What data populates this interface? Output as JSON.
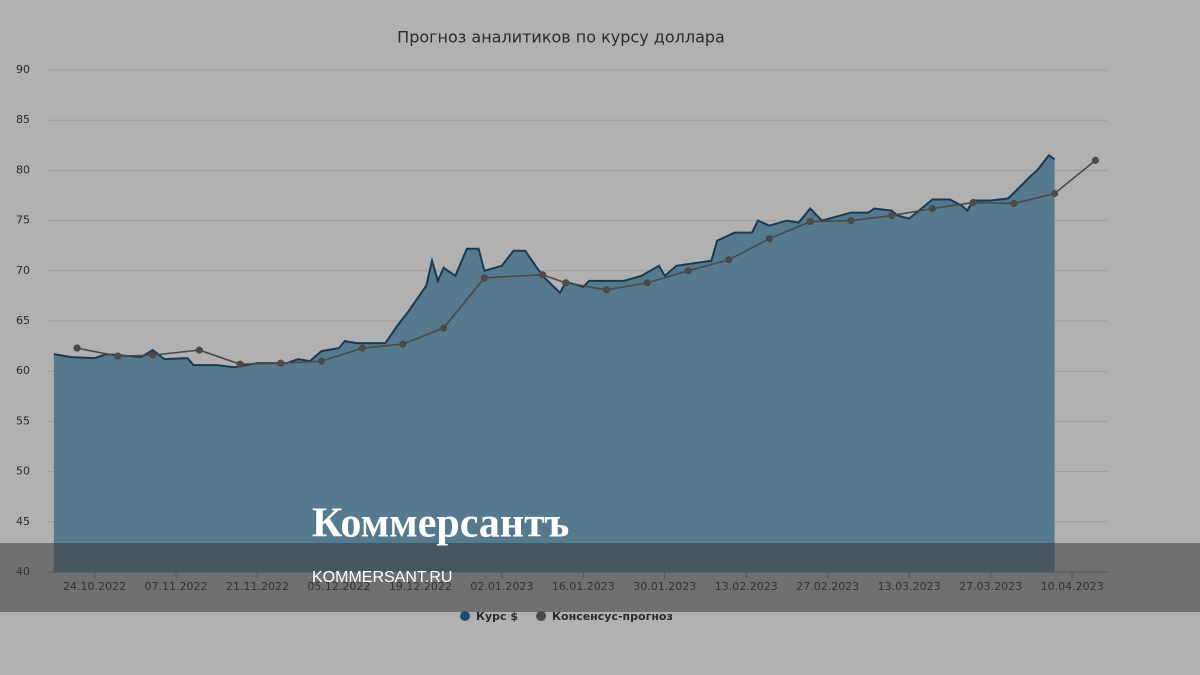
{
  "chart_data": {
    "type": "area",
    "title": "Прогноз аналитиков по курсу доллара",
    "xlim": [
      "16.10.2022",
      "16.04.2023"
    ],
    "xticks": [
      "24.10.2022",
      "07.11.2022",
      "21.11.2022",
      "05.12.2022",
      "19.12.2022",
      "02.01.2023",
      "16.01.2023",
      "30.01.2023",
      "13.02.2023",
      "27.02.2023",
      "13.03.2023",
      "27.03.2023",
      "10.04.2023"
    ],
    "ylim": [
      40,
      90
    ],
    "yticks": [
      40,
      45,
      50,
      55,
      60,
      65,
      70,
      75,
      80,
      85,
      90
    ],
    "grid": true,
    "legend": "bottom",
    "series": [
      {
        "name": "Курс $",
        "type": "area",
        "color": "#567a8d",
        "line_color": "#173a55",
        "x": [
          "17.10.2022",
          "20.10.2022",
          "24.10.2022",
          "26.10.2022",
          "01.11.2022",
          "03.11.2022",
          "05.11.2022",
          "09.11.2022",
          "10.11.2022",
          "14.11.2022",
          "17.11.2022",
          "21.11.2022",
          "26.11.2022",
          "28.11.2022",
          "30.11.2022",
          "02.12.2022",
          "05.12.2022",
          "06.12.2022",
          "08.12.2022",
          "13.12.2022",
          "15.12.2022",
          "17.12.2022",
          "20.12.2022",
          "21.12.2022",
          "22.12.2022",
          "23.12.2022",
          "25.12.2022",
          "27.12.2022",
          "29.12.2022",
          "30.12.2022",
          "02.01.2023",
          "04.01.2023",
          "06.01.2023",
          "09.01.2023",
          "12.01.2023",
          "13.01.2023",
          "16.01.2023",
          "17.01.2023",
          "23.01.2023",
          "26.01.2023",
          "29.01.2023",
          "30.01.2023",
          "01.02.2023",
          "07.02.2023",
          "08.02.2023",
          "11.02.2023",
          "14.02.2023",
          "15.02.2023",
          "17.02.2023",
          "20.02.2023",
          "22.02.2023",
          "24.02.2023",
          "26.02.2023",
          "03.03.2023",
          "06.03.2023",
          "07.03.2023",
          "10.03.2023",
          "11.03.2023",
          "13.03.2023",
          "17.03.2023",
          "20.03.2023",
          "22.03.2023",
          "23.03.2023",
          "24.03.2023",
          "27.03.2023",
          "30.03.2023",
          "03.04.2023",
          "04.04.2023",
          "06.04.2023",
          "07.04.2023"
        ],
        "values": [
          61.7,
          61.4,
          61.3,
          61.7,
          61.4,
          62.1,
          61.2,
          61.3,
          60.6,
          60.6,
          60.4,
          60.8,
          60.8,
          61.2,
          61.0,
          62.0,
          62.3,
          63.0,
          62.8,
          62.8,
          64.5,
          66.0,
          68.5,
          71.0,
          69.0,
          70.3,
          69.5,
          72.2,
          72.2,
          70.0,
          70.5,
          72.0,
          72.0,
          69.5,
          67.8,
          68.9,
          68.4,
          69.0,
          69.0,
          69.5,
          70.5,
          69.5,
          70.5,
          71.0,
          73.0,
          73.8,
          73.8,
          75.0,
          74.5,
          75.0,
          74.8,
          76.2,
          75.0,
          75.8,
          75.8,
          76.2,
          76.0,
          75.5,
          75.2,
          77.1,
          77.1,
          76.5,
          76.0,
          77.0,
          77.0,
          77.2,
          79.5,
          80.0,
          81.5,
          81.1
        ]
      },
      {
        "name": "Консенсус-прогноз",
        "type": "line",
        "color": "#4a4a4a",
        "x": [
          "21.10.2022",
          "28.10.2022",
          "03.11.2022",
          "11.11.2022",
          "18.11.2022",
          "25.11.2022",
          "02.12.2022",
          "09.12.2022",
          "16.12.2022",
          "23.12.2022",
          "30.12.2022",
          "09.01.2023",
          "13.01.2023",
          "20.01.2023",
          "27.01.2023",
          "03.02.2023",
          "10.02.2023",
          "17.02.2023",
          "24.02.2023",
          "03.03.2023",
          "10.03.2023",
          "17.03.2023",
          "24.03.2023",
          "31.03.2023",
          "07.04.2023",
          "14.04.2023"
        ],
        "values": [
          62.3,
          61.5,
          61.6,
          62.1,
          60.7,
          60.8,
          61.0,
          62.3,
          62.7,
          64.3,
          69.3,
          69.6,
          68.8,
          68.1,
          68.8,
          70.0,
          71.1,
          73.2,
          74.9,
          75.0,
          75.5,
          76.2,
          76.8,
          76.7,
          77.7,
          81.0
        ]
      }
    ]
  },
  "watermark": {
    "logo": "Коммерсантъ",
    "url": "KOMMERSANT.RU"
  }
}
